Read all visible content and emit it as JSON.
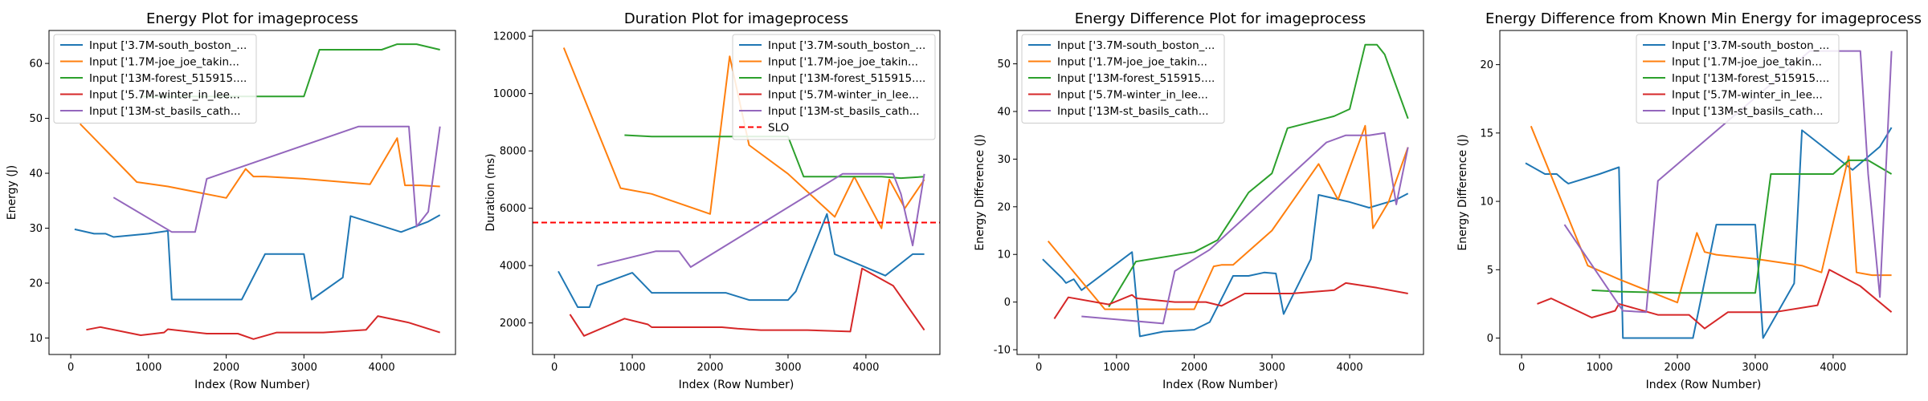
{
  "chart_data": [
    {
      "type": "line",
      "title": "Energy Plot for imageprocess",
      "xlabel": "Index (Row Number)",
      "ylabel": "Energy (J)",
      "xlim": [
        -280,
        4950
      ],
      "ylim": [
        7,
        66
      ],
      "xticks": [
        0,
        1000,
        2000,
        3000,
        4000
      ],
      "yticks": [
        10,
        20,
        30,
        40,
        50,
        60
      ],
      "legend_position": "upper-left",
      "series": [
        {
          "name": "Input ['3.7M-south_boston_...",
          "color": "#1f77b4",
          "x": [
            50,
            300,
            450,
            550,
            1000,
            1250,
            1300,
            1500,
            2200,
            2500,
            3000,
            3100,
            3500,
            3600,
            4250,
            4600,
            4750
          ],
          "y": [
            29.8,
            29.0,
            29.0,
            28.4,
            29.0,
            29.5,
            17.0,
            17.0,
            17.0,
            25.3,
            25.3,
            17.0,
            21.0,
            32.2,
            29.3,
            31.2,
            32.4
          ]
        },
        {
          "name": "Input ['1.7M-joe_joe_takin...",
          "color": "#ff7f0e",
          "x": [
            120,
            850,
            1250,
            2000,
            2250,
            2350,
            2500,
            3000,
            3600,
            3850,
            4200,
            4300,
            4500,
            4750
          ],
          "y": [
            49.0,
            38.4,
            37.6,
            35.5,
            40.8,
            39.4,
            39.4,
            39.0,
            38.3,
            38.0,
            46.4,
            37.8,
            37.8,
            37.6
          ]
        },
        {
          "name": "Input ['13M-forest_515915....",
          "color": "#2ca02c",
          "x": [
            900,
            1250,
            2000,
            2300,
            3000,
            3200,
            3800,
            4000,
            4200,
            4450,
            4750
          ],
          "y": [
            54.0,
            54.0,
            54.0,
            54.0,
            54.0,
            62.5,
            62.5,
            62.5,
            63.5,
            63.5,
            62.5
          ]
        },
        {
          "name": "Input ['5.7M-winter_in_lee...",
          "color": "#d62728",
          "x": [
            200,
            380,
            900,
            1200,
            1250,
            1750,
            2150,
            2350,
            2650,
            3250,
            3800,
            3950,
            4350,
            4750
          ],
          "y": [
            11.5,
            12.0,
            10.5,
            11.0,
            11.6,
            10.8,
            10.8,
            9.8,
            11.0,
            11.0,
            11.5,
            14.0,
            12.8,
            11.0
          ]
        },
        {
          "name": "Input ['13M-st_basils_cath...",
          "color": "#9467bd",
          "x": [
            550,
            1300,
            1600,
            1750,
            3700,
            3950,
            4350,
            4450,
            4600,
            4750
          ],
          "y": [
            35.6,
            29.3,
            29.3,
            39.0,
            48.5,
            48.5,
            48.5,
            30.3,
            33.0,
            48.5
          ]
        }
      ]
    },
    {
      "type": "line",
      "title": "Duration Plot for imageprocess",
      "xlabel": "Index (Row Number)",
      "ylabel": "Duration (ms)",
      "xlim": [
        -280,
        4950
      ],
      "ylim": [
        900,
        12200
      ],
      "xticks": [
        0,
        1000,
        2000,
        3000,
        4000
      ],
      "yticks": [
        2000,
        4000,
        6000,
        8000,
        10000,
        12000
      ],
      "legend_position": "upper-right",
      "slo": {
        "label": "SLO",
        "value": 5500,
        "color": "#ff0000"
      },
      "series": [
        {
          "name": "Input ['3.7M-south_boston_...",
          "color": "#1f77b4",
          "x": [
            50,
            300,
            450,
            550,
            1000,
            1250,
            1300,
            1500,
            2200,
            2500,
            3000,
            3100,
            3500,
            3600,
            4250,
            4600,
            4750
          ],
          "y": [
            3800,
            2550,
            2550,
            3300,
            3750,
            3050,
            3050,
            3050,
            3050,
            2800,
            2800,
            3100,
            5800,
            4400,
            3650,
            4400,
            4400
          ]
        },
        {
          "name": "Input ['1.7M-joe_joe_takin...",
          "color": "#ff7f0e",
          "x": [
            120,
            850,
            1250,
            2000,
            2250,
            2500,
            3000,
            3600,
            3850,
            4200,
            4300,
            4500,
            4750
          ],
          "y": [
            11600,
            6700,
            6500,
            5800,
            11300,
            8200,
            7200,
            5700,
            7100,
            5300,
            7000,
            6000,
            7000
          ]
        },
        {
          "name": "Input ['13M-forest_515915....",
          "color": "#2ca02c",
          "x": [
            900,
            1250,
            2000,
            2300,
            3000,
            3200,
            3800,
            4000,
            4200,
            4450,
            4750
          ],
          "y": [
            8550,
            8500,
            8500,
            8500,
            8500,
            7100,
            7100,
            7100,
            7100,
            7050,
            7100
          ]
        },
        {
          "name": "Input ['5.7M-winter_in_lee...",
          "color": "#d62728",
          "x": [
            200,
            380,
            900,
            1200,
            1250,
            1750,
            2150,
            2350,
            2650,
            3250,
            3800,
            3950,
            4350,
            4750
          ],
          "y": [
            2300,
            1550,
            2150,
            1950,
            1850,
            1850,
            1850,
            1800,
            1750,
            1750,
            1700,
            3900,
            3300,
            1750
          ]
        },
        {
          "name": "Input ['13M-st_basils_cath...",
          "color": "#9467bd",
          "x": [
            550,
            1300,
            1600,
            1750,
            3700,
            3950,
            4350,
            4450,
            4600,
            4750
          ],
          "y": [
            4000,
            4500,
            4500,
            3950,
            7200,
            7200,
            7200,
            6500,
            4700,
            7200
          ]
        }
      ]
    },
    {
      "type": "line",
      "title": "Energy Difference Plot for imageprocess",
      "xlabel": "Index (Row Number)",
      "ylabel": "Energy Difference (J)",
      "xlim": [
        -280,
        4950
      ],
      "ylim": [
        -11,
        57
      ],
      "xticks": [
        0,
        1000,
        2000,
        3000,
        4000
      ],
      "yticks": [
        -10,
        0,
        10,
        20,
        30,
        40,
        50
      ],
      "legend_position": "upper-left",
      "series": [
        {
          "name": "Input ['3.7M-south_boston_...",
          "color": "#1f77b4",
          "x": [
            50,
            300,
            350,
            450,
            550,
            1200,
            1300,
            1600,
            2000,
            2200,
            2500,
            2700,
            2900,
            3050,
            3150,
            3500,
            3600,
            4000,
            4250,
            4600,
            4750
          ],
          "y": [
            9.0,
            5.0,
            4.0,
            4.8,
            2.5,
            10.5,
            -7.2,
            -6.2,
            -5.8,
            -4.2,
            5.5,
            5.5,
            6.2,
            6.0,
            -2.5,
            9.0,
            22.5,
            21.0,
            19.8,
            21.5,
            22.8
          ]
        },
        {
          "name": "Input ['1.7M-joe_joe_takin...",
          "color": "#ff7f0e",
          "x": [
            120,
            850,
            1250,
            2000,
            2250,
            2350,
            2500,
            3000,
            3600,
            3850,
            4200,
            4300,
            4500,
            4750
          ],
          "y": [
            12.8,
            -1.5,
            -1.5,
            -1.5,
            7.5,
            7.8,
            7.8,
            15.0,
            29.0,
            21.5,
            37.0,
            15.5,
            21.0,
            32.5
          ]
        },
        {
          "name": "Input ['13M-forest_515915....",
          "color": "#2ca02c",
          "x": [
            900,
            1250,
            2000,
            2300,
            2700,
            3000,
            3200,
            3800,
            4000,
            4200,
            4350,
            4450,
            4750
          ],
          "y": [
            -1.0,
            8.5,
            10.5,
            13.0,
            23.0,
            27.0,
            36.5,
            39.0,
            40.5,
            54.0,
            54.0,
            52.0,
            38.5
          ]
        },
        {
          "name": "Input ['5.7M-winter_in_lee...",
          "color": "#d62728",
          "x": [
            200,
            380,
            900,
            1200,
            1250,
            1750,
            2150,
            2350,
            2650,
            3250,
            3800,
            3950,
            4350,
            4750
          ],
          "y": [
            -3.5,
            1.0,
            -0.5,
            1.5,
            0.8,
            0.0,
            0.0,
            -0.8,
            1.8,
            1.8,
            2.5,
            4.0,
            3.0,
            1.8
          ]
        },
        {
          "name": "Input ['13M-st_basils_cath...",
          "color": "#9467bd",
          "x": [
            550,
            1600,
            1750,
            2200,
            3700,
            3950,
            4250,
            4450,
            4600,
            4750
          ],
          "y": [
            -3.0,
            -4.5,
            6.5,
            11.0,
            33.5,
            35.0,
            35.0,
            35.5,
            20.5,
            32.5
          ]
        }
      ]
    },
    {
      "type": "line",
      "title": "Energy Difference from Known Min Energy for imageprocess",
      "xlabel": "Index (Row Number)",
      "ylabel": "Energy Difference (J)",
      "xlim": [
        -280,
        4950
      ],
      "ylim": [
        -1.2,
        22.5
      ],
      "xticks": [
        0,
        1000,
        2000,
        3000,
        4000
      ],
      "yticks": [
        0,
        5,
        10,
        15,
        20
      ],
      "legend_position": "upper-center",
      "series": [
        {
          "name": "Input ['3.7M-south_boston_...",
          "color": "#1f77b4",
          "x": [
            50,
            300,
            450,
            550,
            600,
            1000,
            1250,
            1300,
            2200,
            2500,
            3000,
            3100,
            3500,
            3600,
            4250,
            4600,
            4750
          ],
          "y": [
            12.8,
            12.0,
            12.0,
            11.5,
            11.3,
            12.0,
            12.5,
            0.0,
            0.0,
            8.3,
            8.3,
            0.0,
            4.0,
            15.2,
            12.3,
            14.0,
            15.4
          ]
        },
        {
          "name": "Input ['1.7M-joe_joe_takin...",
          "color": "#ff7f0e",
          "x": [
            120,
            850,
            1250,
            2000,
            2250,
            2350,
            2500,
            3000,
            3600,
            3850,
            4200,
            4300,
            4500,
            4750
          ],
          "y": [
            15.5,
            5.3,
            4.3,
            2.6,
            7.7,
            6.3,
            6.1,
            5.8,
            5.3,
            4.8,
            13.3,
            4.8,
            4.6,
            4.6
          ]
        },
        {
          "name": "Input ['13M-forest_515915....",
          "color": "#2ca02c",
          "x": [
            900,
            1250,
            2000,
            2300,
            3000,
            3200,
            3800,
            4000,
            4200,
            4450,
            4750
          ],
          "y": [
            3.5,
            3.4,
            3.3,
            3.3,
            3.3,
            12.0,
            12.0,
            12.0,
            13.0,
            13.0,
            12.0
          ]
        },
        {
          "name": "Input ['5.7M-winter_in_lee...",
          "color": "#d62728",
          "x": [
            200,
            380,
            900,
            1200,
            1250,
            1750,
            2150,
            2350,
            2650,
            3250,
            3800,
            3950,
            4350,
            4750
          ],
          "y": [
            2.5,
            2.9,
            1.5,
            2.0,
            2.5,
            1.7,
            1.7,
            0.7,
            1.9,
            1.9,
            2.4,
            5.0,
            3.8,
            1.9
          ]
        },
        {
          "name": "Input ['13M-st_basils_cath...",
          "color": "#9467bd",
          "x": [
            550,
            1300,
            1600,
            1750,
            3700,
            3950,
            4350,
            4450,
            4600,
            4750
          ],
          "y": [
            8.3,
            2.0,
            1.9,
            11.5,
            21.0,
            21.0,
            21.0,
            12.0,
            3.0,
            21.0
          ]
        }
      ]
    }
  ]
}
